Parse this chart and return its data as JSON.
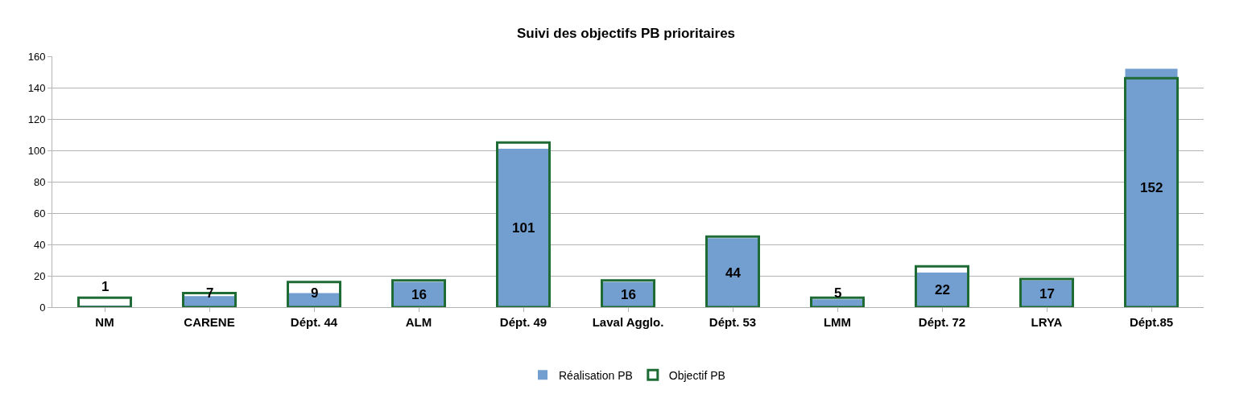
{
  "chart_data": {
    "type": "bar",
    "title": "Suivi des objectifs PB prioritaires",
    "categories": [
      "NM",
      "CARENE",
      "Dépt. 44",
      "ALM",
      "Dépt. 49",
      "Laval Agglo.",
      "Dépt. 53",
      "LMM",
      "Dépt. 72",
      "LRYA",
      "Dépt.85"
    ],
    "series": [
      {
        "name": "Réalisation PB",
        "color": "#729fcf",
        "values": [
          1,
          7,
          9,
          16,
          101,
          16,
          44,
          5,
          22,
          17,
          152
        ],
        "value_labels": [
          "1",
          "7",
          "9",
          "16",
          "101",
          "16",
          "44",
          "5",
          "22",
          "17",
          "152"
        ]
      },
      {
        "name": "Objectif PB",
        "color": "#1e6b35",
        "type": "bar",
        "line_style": "solid",
        "values": [
          6,
          9,
          16,
          17,
          105,
          17,
          45,
          6,
          26,
          18,
          146
        ]
      }
    ],
    "ylim": [
      0,
      160
    ],
    "yticks": [
      0,
      20,
      40,
      60,
      80,
      100,
      120,
      140,
      160
    ],
    "grid": "y",
    "legend": "bottom"
  }
}
